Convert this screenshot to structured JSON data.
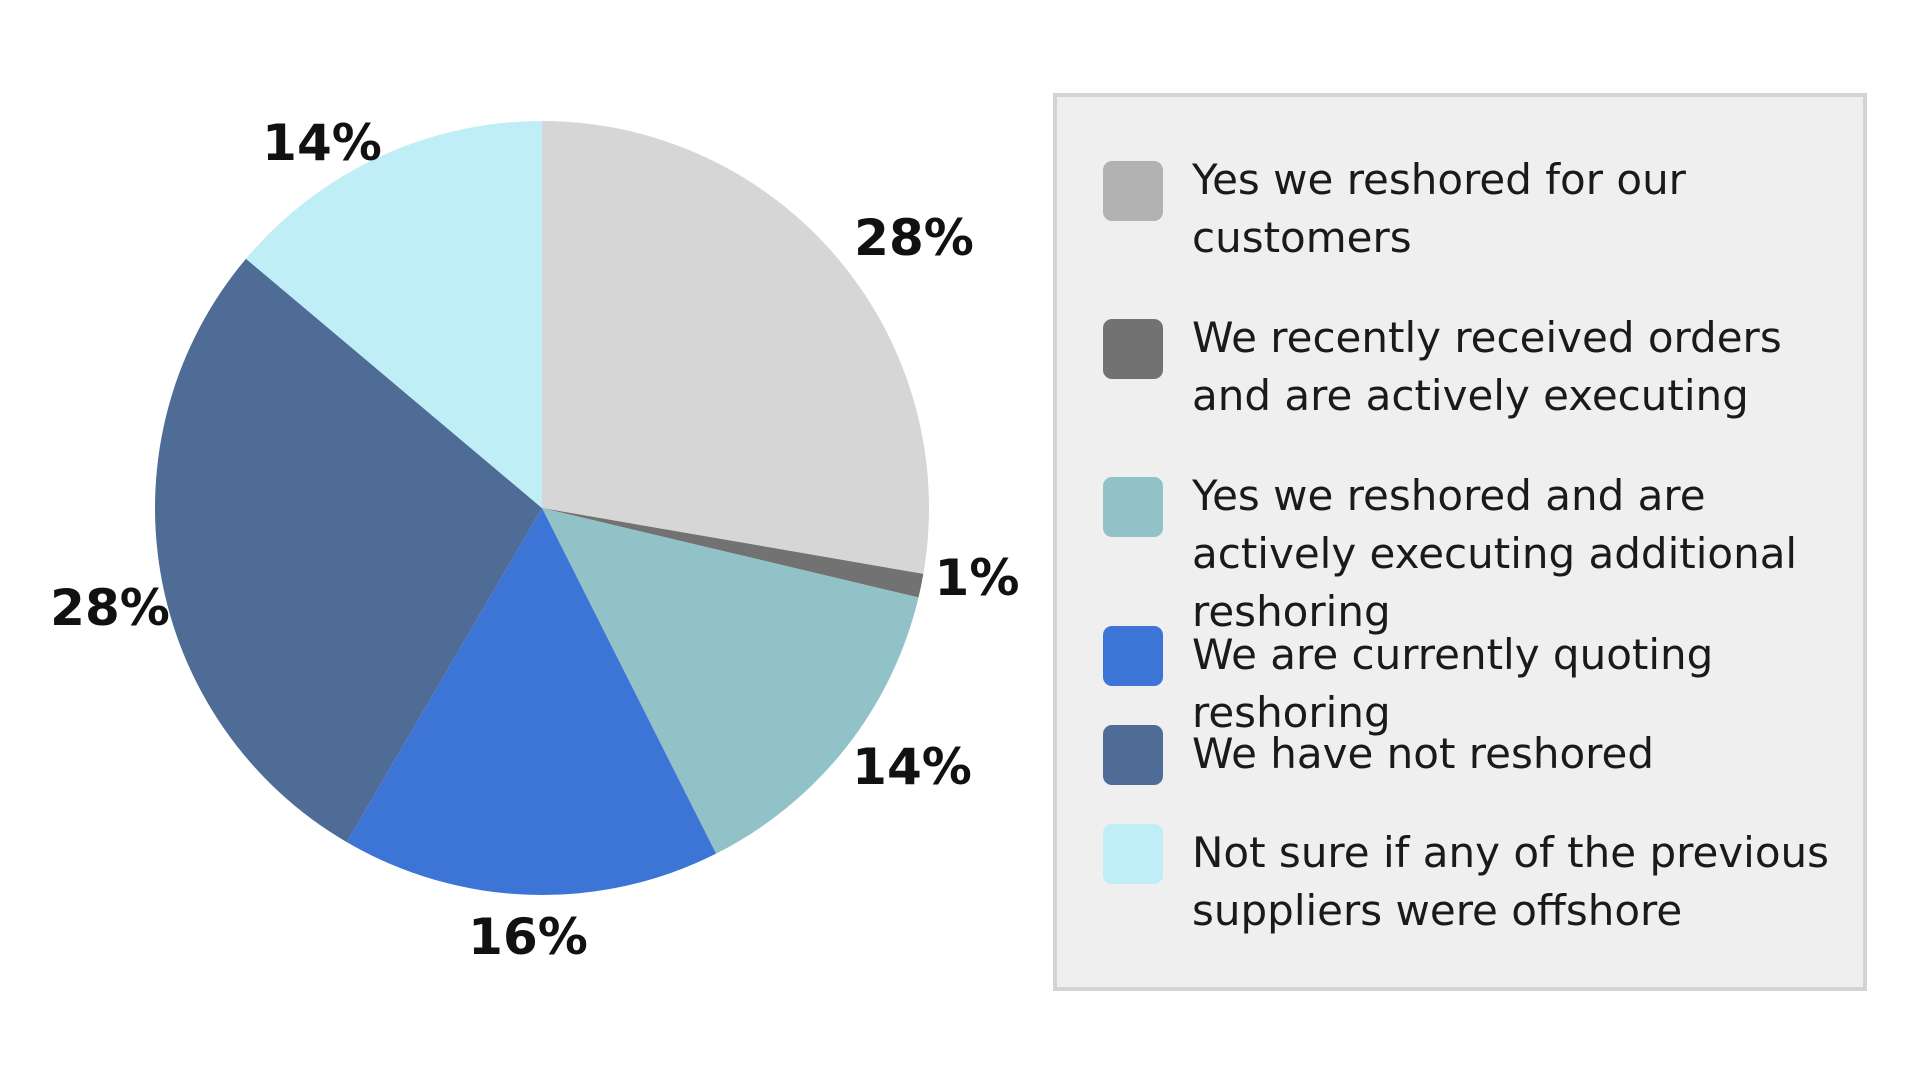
{
  "chart_data": {
    "type": "pie",
    "start_angle": "12 o'clock",
    "direction": "clockwise",
    "legend_position": "right",
    "slices": [
      {
        "label": "Yes we reshored for our customers",
        "value": 28,
        "value_label": "28%",
        "color": "#d7d6d7"
      },
      {
        "label": "We recently received orders and are actively executing",
        "value": 1,
        "value_label": "1%",
        "color": "#727272"
      },
      {
        "label": "Yes we reshored and are actively executing additional reshoring",
        "value": 14,
        "value_label": "14%",
        "color": "#90c2c8"
      },
      {
        "label": "We are currently quoting reshoring",
        "value": 16,
        "value_label": "16%",
        "color": "#3c75d5"
      },
      {
        "label": "We have not reshored",
        "value": 28,
        "value_label": "28%",
        "color": "#4e6c96"
      },
      {
        "label": "Not sure if any of the previous suppliers were offshore",
        "value": 14,
        "value_label": "14%",
        "color": "#bfeef6"
      }
    ]
  },
  "legend_items": [
    {
      "label": "Yes we reshored for our customers",
      "color": "#b3b2b3"
    },
    {
      "label": "We recently received orders and are actively executing",
      "color": "#727272"
    },
    {
      "label": "Yes we reshored and are actively executing additional reshoring",
      "color": "#90c2c8"
    },
    {
      "label": "We are currently quoting reshoring",
      "color": "#3c75d5"
    },
    {
      "label": "We have not reshored",
      "color": "#4e6c96"
    },
    {
      "label": "Not sure if any of the previous suppliers were offshore",
      "color": "#bfeef6"
    }
  ]
}
